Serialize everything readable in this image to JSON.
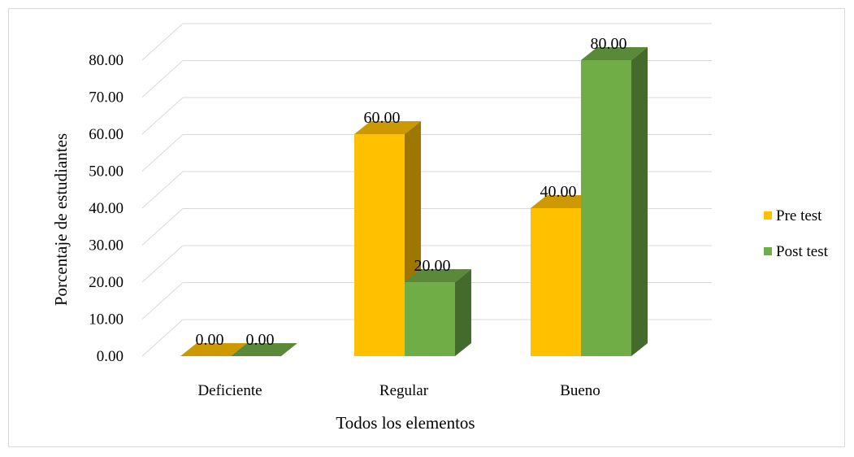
{
  "chart_data": {
    "type": "bar",
    "categories": [
      "Deficiente",
      "Regular",
      "Bueno"
    ],
    "series": [
      {
        "name": "Pre test",
        "values": [
          0.0,
          60.0,
          40.0
        ],
        "color": "#ffc000"
      },
      {
        "name": "Post test",
        "values": [
          0.0,
          20.0,
          80.0
        ],
        "color": "#70ad47"
      }
    ],
    "data_labels": [
      [
        "0.00",
        "60.00",
        "40.00"
      ],
      [
        "0.00",
        "20.00",
        "80.00"
      ]
    ],
    "y_ticks": [
      "0.00",
      "10.00",
      "20.00",
      "30.00",
      "40.00",
      "50.00",
      "60.00",
      "70.00",
      "80.00"
    ],
    "ylim": [
      0,
      80
    ],
    "xlabel": "Todos los elementos",
    "ylabel": "Porcentaje de estudiantes",
    "grid": true,
    "legend_position": "right",
    "style_3d": true
  }
}
